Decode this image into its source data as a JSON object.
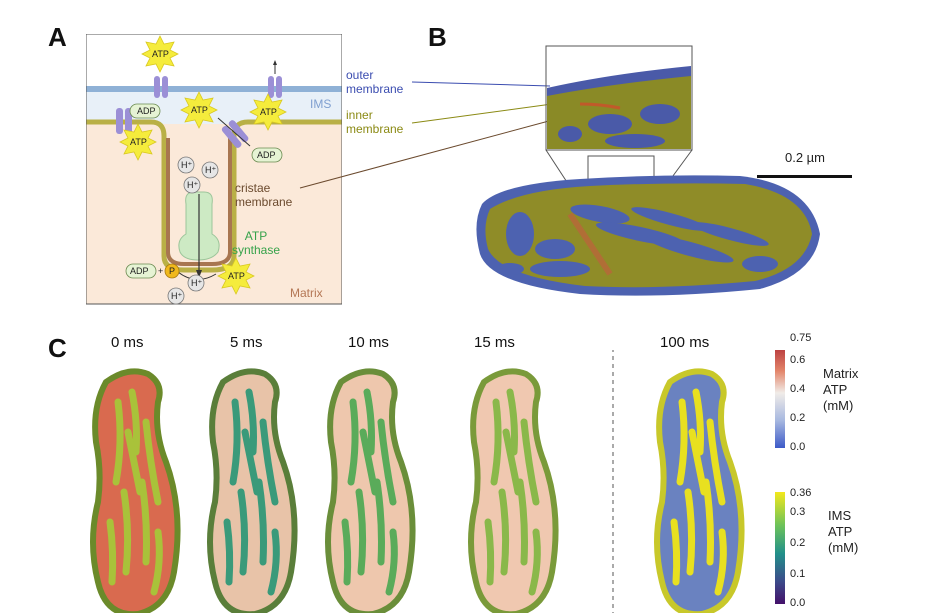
{
  "panels": {
    "a": "A",
    "b": "B",
    "c": "C"
  },
  "panel_a": {
    "outer_membrane": "outer\nmembrane",
    "inner_membrane": "inner\nmembrane",
    "ims": "IMS",
    "cristae_membrane": "cristae\nmembrane",
    "atp_synthase": "ATP\nsynthase",
    "matrix": "Matrix",
    "atp": "ATP",
    "adp": "ADP",
    "phosphate": "P",
    "proton": "H⁺",
    "plus": "+"
  },
  "panel_b": {
    "scale_bar": "0.2 µm"
  },
  "panel_c": {
    "times": [
      "0 ms",
      "5 ms",
      "10 ms",
      "15 ms",
      "100 ms"
    ],
    "matrix_colorbar": {
      "title": "Matrix\nATP\n(mM)",
      "ticks": [
        "0.75",
        "0.6",
        "0.4",
        "0.2",
        "0.0"
      ]
    },
    "ims_colorbar": {
      "title": "IMS\nATP\n(mM)",
      "ticks": [
        "0.36",
        "0.3",
        "0.2",
        "0.1",
        "0.0"
      ]
    }
  },
  "colors": {
    "outer_membrane": "#8fb1d6",
    "inner_membrane": "#b9b046",
    "ims_bg": "#e8f0f8",
    "matrix_bg": "#fbe9d9",
    "cristae": "#a87650",
    "atp_star": "#f5ec3c",
    "adp_box": "#e6f3d4",
    "transporter": "#9b8fd6",
    "synthase": "#cdeac4",
    "outer_label": "#3b4db0",
    "inner_label": "#8b8a14",
    "ims_label": "#7f9fd0",
    "cristae_label": "#6b4a2e",
    "synthase_label": "#36a24a",
    "matrix_label": "#b47755"
  }
}
